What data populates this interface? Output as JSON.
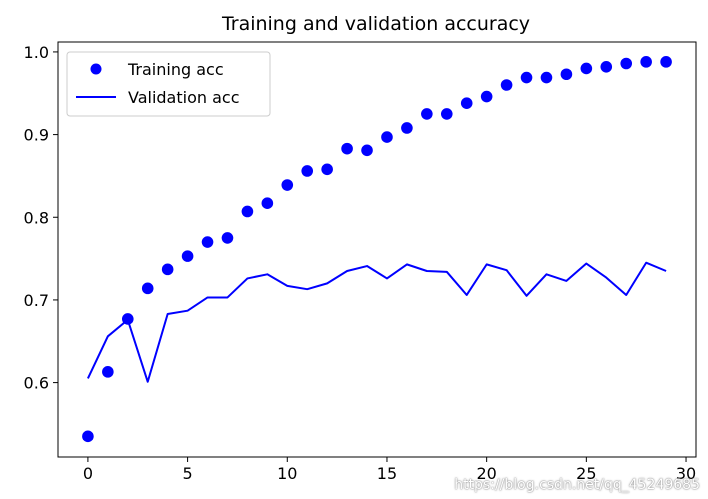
{
  "chart_data": {
    "type": "scatter",
    "title": "Training and validation accuracy",
    "xlabel": "",
    "ylabel": "",
    "xlim": [
      -1.5,
      30.5
    ],
    "ylim": [
      0.51,
      1.012
    ],
    "xticks": [
      0,
      5,
      10,
      15,
      20,
      25,
      30
    ],
    "xtick_labels": [
      "0",
      "5",
      "10",
      "15",
      "20",
      "25",
      "30"
    ],
    "yticks": [
      0.6,
      0.7,
      0.8,
      0.9,
      1.0
    ],
    "ytick_labels": [
      "0.6",
      "0.7",
      "0.8",
      "0.9",
      "1.0"
    ],
    "grid": false,
    "legend_position": "top-left",
    "x": [
      0,
      1,
      2,
      3,
      4,
      5,
      6,
      7,
      8,
      9,
      10,
      11,
      12,
      13,
      14,
      15,
      16,
      17,
      18,
      19,
      20,
      21,
      22,
      23,
      24,
      25,
      26,
      27,
      28,
      29
    ],
    "series": [
      {
        "name": "Training acc",
        "kind": "markers",
        "color": "#0000ff",
        "values": [
          0.535,
          0.613,
          0.677,
          0.714,
          0.737,
          0.753,
          0.77,
          0.775,
          0.807,
          0.817,
          0.839,
          0.856,
          0.858,
          0.883,
          0.881,
          0.897,
          0.908,
          0.925,
          0.925,
          0.938,
          0.946,
          0.96,
          0.969,
          0.969,
          0.973,
          0.98,
          0.982,
          0.986,
          0.988,
          0.988
        ]
      },
      {
        "name": "Validation acc",
        "kind": "line",
        "color": "#0000ff",
        "values": [
          0.605,
          0.656,
          0.676,
          0.601,
          0.683,
          0.687,
          0.703,
          0.703,
          0.726,
          0.731,
          0.717,
          0.713,
          0.72,
          0.735,
          0.741,
          0.726,
          0.743,
          0.735,
          0.734,
          0.706,
          0.743,
          0.736,
          0.705,
          0.731,
          0.723,
          0.744,
          0.727,
          0.706,
          0.745,
          0.735
        ]
      }
    ]
  },
  "watermark": "https://blog.csdn.net/qq_45249685"
}
